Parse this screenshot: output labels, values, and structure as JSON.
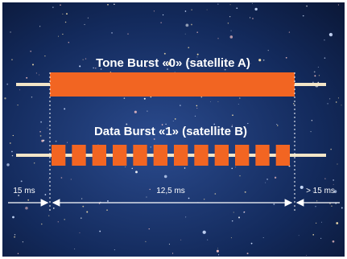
{
  "signals": [
    {
      "label": "Tone Burst «0» (satellite A)"
    },
    {
      "label": "Data Burst «1» (satellite B)"
    }
  ],
  "timings": [
    {
      "label": "15 ms"
    },
    {
      "label": "12,5 ms"
    },
    {
      "label": "> 15 ms"
    }
  ]
}
